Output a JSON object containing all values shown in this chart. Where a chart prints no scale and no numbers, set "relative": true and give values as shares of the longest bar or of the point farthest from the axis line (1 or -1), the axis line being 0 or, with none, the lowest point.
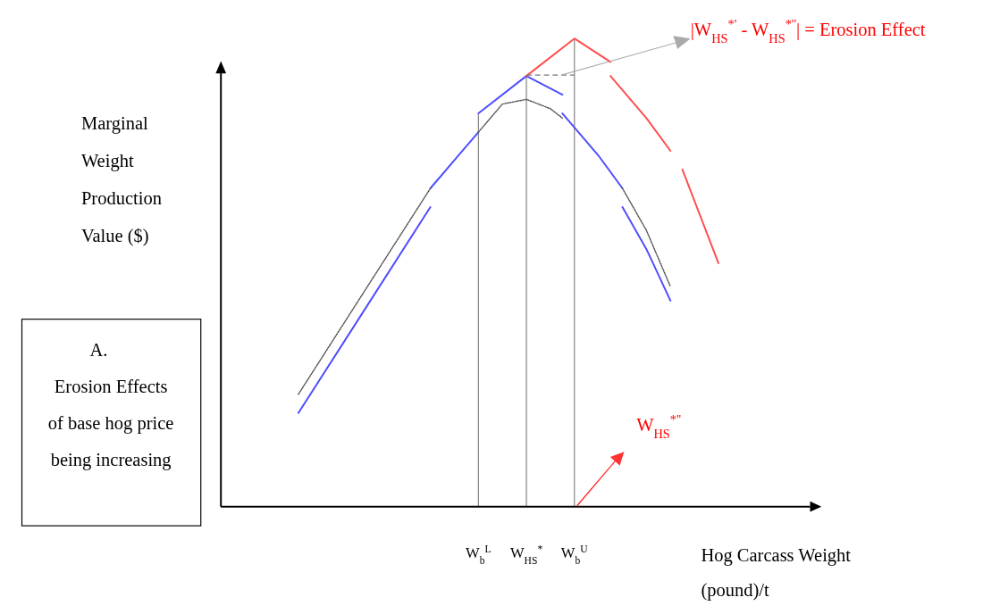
{
  "chart_data": {
    "type": "line",
    "relative": true,
    "xlabel": "Hog Carcass Weight (pound)/t",
    "ylabel": "Marginal Weight Production Value ($)",
    "categories": [
      null,
      null,
      null,
      null,
      null,
      null,
      null,
      null,
      null,
      null,
      null,
      null,
      null,
      null,
      null,
      null,
      null,
      null,
      null,
      null,
      "W$_{b}$$^{L}$",
      null,
      null,
      null,
      "W$_{HS}$$^{*}$",
      null,
      null,
      null,
      "W$_{b}$$^{U}$",
      null,
      null,
      null,
      null,
      null,
      null,
      null,
      null,
      null,
      null,
      null,
      null,
      null,
      null,
      null,
      null,
      null,
      null,
      null
    ],
    "series": [
      {
        "color": "#4d4dff",
        "values": [
          null,
          null,
          null,
          null,
          null,
          0.2,
          null,
          null,
          null,
          null,
          0.4,
          null,
          null,
          null,
          null,
          null,
          0.64,
          null,
          null,
          null,
          null,
          null,
          null,
          null,
          null,
          null,
          null,
          null,
          null,
          null,
          null,
          null,
          null,
          null,
          null,
          null,
          null,
          null,
          null,
          null,
          null,
          null,
          null,
          null,
          null,
          null,
          null,
          null
        ]
      },
      {
        "color": "#4d4dff",
        "values": [
          null,
          null,
          null,
          null,
          null,
          null,
          null,
          null,
          null,
          null,
          null,
          null,
          null,
          null,
          null,
          null,
          0.68,
          null,
          null,
          null,
          0.8,
          null,
          null,
          null,
          null,
          null,
          null,
          null,
          null,
          null,
          null,
          null,
          null,
          null,
          null,
          null,
          null,
          null,
          null,
          null,
          null,
          null,
          null,
          null,
          null,
          null,
          null,
          null
        ]
      },
      {
        "color": "#4d4dff",
        "values": [
          null,
          null,
          null,
          null,
          null,
          null,
          null,
          null,
          null,
          null,
          null,
          null,
          null,
          null,
          null,
          null,
          null,
          null,
          null,
          null,
          0.84,
          null,
          null,
          null,
          0.92,
          null,
          null,
          0.88,
          null,
          null,
          null,
          null,
          null,
          null,
          null,
          null,
          null,
          null,
          null,
          null,
          null,
          null,
          null,
          null,
          null,
          null,
          null,
          null
        ]
      },
      {
        "color": "#4d4dff",
        "values": [
          null,
          null,
          null,
          null,
          null,
          null,
          null,
          null,
          null,
          null,
          null,
          null,
          null,
          null,
          null,
          null,
          null,
          null,
          null,
          null,
          null,
          null,
          null,
          null,
          null,
          null,
          null,
          0.84,
          0.81,
          null,
          0.75,
          null,
          0.68,
          null,
          null,
          null,
          null,
          null,
          null,
          null,
          null,
          null,
          null,
          null,
          null,
          null,
          null,
          null
        ]
      },
      {
        "color": "#4d4dff",
        "values": [
          null,
          null,
          null,
          null,
          null,
          null,
          null,
          null,
          null,
          null,
          null,
          null,
          null,
          null,
          null,
          null,
          null,
          null,
          null,
          null,
          null,
          null,
          null,
          null,
          null,
          null,
          null,
          null,
          null,
          null,
          null,
          null,
          0.64,
          null,
          0.55,
          null,
          0.44,
          null,
          null,
          null,
          null,
          null,
          null,
          null,
          null,
          null,
          null,
          null
        ]
      },
      {
        "color": "#555555",
        "line_style": "dotted",
        "values": [
          null,
          null,
          null,
          null,
          null,
          0.24,
          null,
          null,
          null,
          null,
          0.44,
          null,
          null,
          0.56,
          null,
          null,
          0.68,
          null,
          null,
          null,
          null,
          null,
          null,
          null,
          null,
          null,
          null,
          null,
          null,
          null,
          null,
          null,
          null,
          null,
          null,
          null,
          null,
          null,
          null,
          null,
          null,
          null,
          null,
          null,
          null,
          null,
          null,
          null
        ]
      },
      {
        "color": "#555555",
        "line_style": "dotted",
        "values": [
          null,
          null,
          null,
          null,
          null,
          null,
          null,
          null,
          null,
          null,
          null,
          null,
          null,
          null,
          null,
          null,
          null,
          null,
          null,
          null,
          0.8,
          null,
          0.86,
          null,
          0.87,
          null,
          0.85,
          0.83,
          null,
          null,
          null,
          null,
          null,
          null,
          null,
          null,
          null,
          null,
          null,
          null,
          null,
          null,
          null,
          null,
          null,
          null,
          null,
          null
        ]
      },
      {
        "color": "#555555",
        "line_style": "dotted",
        "values": [
          null,
          null,
          null,
          null,
          null,
          null,
          null,
          null,
          null,
          null,
          null,
          null,
          null,
          null,
          null,
          null,
          null,
          null,
          null,
          null,
          null,
          null,
          null,
          null,
          null,
          null,
          null,
          null,
          null,
          null,
          null,
          null,
          0.68,
          null,
          0.59,
          null,
          0.47,
          null,
          null,
          null,
          null,
          null,
          null,
          null,
          null,
          null,
          null,
          null
        ]
      },
      {
        "color": "#ff4d4d",
        "values": [
          null,
          null,
          null,
          null,
          null,
          null,
          null,
          null,
          null,
          null,
          null,
          null,
          null,
          null,
          null,
          null,
          null,
          null,
          null,
          null,
          null,
          null,
          null,
          null,
          0.92,
          null,
          null,
          null,
          1,
          null,
          null,
          0.95,
          null,
          null,
          null,
          null,
          null,
          null,
          null,
          null,
          null,
          null,
          null,
          null,
          null,
          null,
          null,
          null
        ]
      },
      {
        "color": "#ff4d4d",
        "values": [
          null,
          null,
          null,
          null,
          null,
          null,
          null,
          null,
          null,
          null,
          null,
          null,
          null,
          null,
          null,
          null,
          null,
          null,
          null,
          null,
          null,
          null,
          null,
          null,
          null,
          null,
          null,
          null,
          null,
          null,
          null,
          0.92,
          null,
          null,
          0.83,
          null,
          0.76,
          null,
          null,
          null,
          null,
          null,
          null,
          null,
          null,
          null,
          null,
          null
        ]
      },
      {
        "color": "#ff4d4d",
        "values": [
          null,
          null,
          null,
          null,
          null,
          null,
          null,
          null,
          null,
          null,
          null,
          null,
          null,
          null,
          null,
          null,
          null,
          null,
          null,
          null,
          null,
          null,
          null,
          null,
          null,
          null,
          null,
          null,
          null,
          null,
          null,
          null,
          null,
          null,
          null,
          null,
          null,
          0.72,
          null,
          null,
          0.52,
          null,
          null,
          null,
          null,
          null,
          null,
          null
        ]
      }
    ],
    "ref_lines": [
      {
        "axis": "x",
        "value": "W$_{b}$$^{L}$",
        "color": "#808080"
      },
      {
        "axis": "x",
        "value": "W$_{HS}$$^{*}$",
        "color": "#808080"
      },
      {
        "axis": "x",
        "value": "W$_{b}$$^{U}$",
        "color": "#808080"
      }
    ],
    "annotations": [
      "|W$_{HS}$$^{*'}$ - W$_{HS}$$^{*''}$| = Erosion Effect",
      "W$_{HS}$$^{*''}$",
      "A.\nErosion Effects\nof base hog price\nbeing increasing"
    ]
  }
}
